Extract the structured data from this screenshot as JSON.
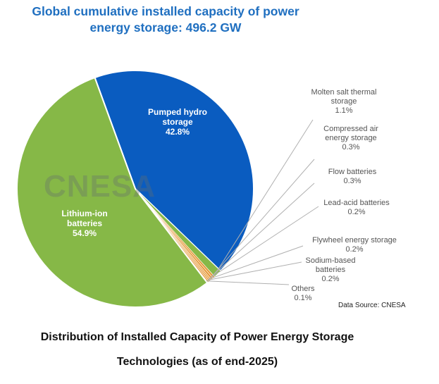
{
  "header": {
    "title_line1": "Global cumulative installed capacity of power",
    "title_line2": "energy storage: 496.2 GW"
  },
  "watermark": "CNESA",
  "source": "Data Source: CNESA",
  "caption": {
    "line1": "Distribution of Installed Capacity of Power Energy Storage",
    "line2": "Technologies (as of end-2025)"
  },
  "colors": {
    "pumped_hydro": "#0a5cc0",
    "lithium_ion": "#86b847",
    "minor": "#e69a3c",
    "leader": "#b0b0b0",
    "label_text": "#555555"
  },
  "chart_data": {
    "type": "pie",
    "title": "Global cumulative installed capacity of power energy storage: 496.2 GW",
    "total_gw": 496.2,
    "unit": "%",
    "slices": [
      {
        "label_lines": [
          "Pumped hydro",
          "storage"
        ],
        "value_text": "42.8%",
        "value": 42.8
      },
      {
        "label_lines": [
          "Molten salt thermal",
          "storage"
        ],
        "value_text": "1.1%",
        "value": 1.1
      },
      {
        "label_lines": [
          "Compressed air",
          "energy storage"
        ],
        "value_text": "0.3%",
        "value": 0.3
      },
      {
        "label_lines": [
          "Flow batteries"
        ],
        "value_text": "0.3%",
        "value": 0.3
      },
      {
        "label_lines": [
          "Lead-acid batteries"
        ],
        "value_text": "0.2%",
        "value": 0.2
      },
      {
        "label_lines": [
          "Flywheel energy storage"
        ],
        "value_text": "0.2%",
        "value": 0.2
      },
      {
        "label_lines": [
          "Sodium-based",
          "batteries"
        ],
        "value_text": "0.2%",
        "value": 0.2
      },
      {
        "label_lines": [
          "Others"
        ],
        "value_text": "0.1%",
        "value": 0.1
      },
      {
        "label_lines": [
          "Lithium-ion",
          "batteries"
        ],
        "value_text": "54.9%",
        "value": 54.9
      }
    ]
  }
}
